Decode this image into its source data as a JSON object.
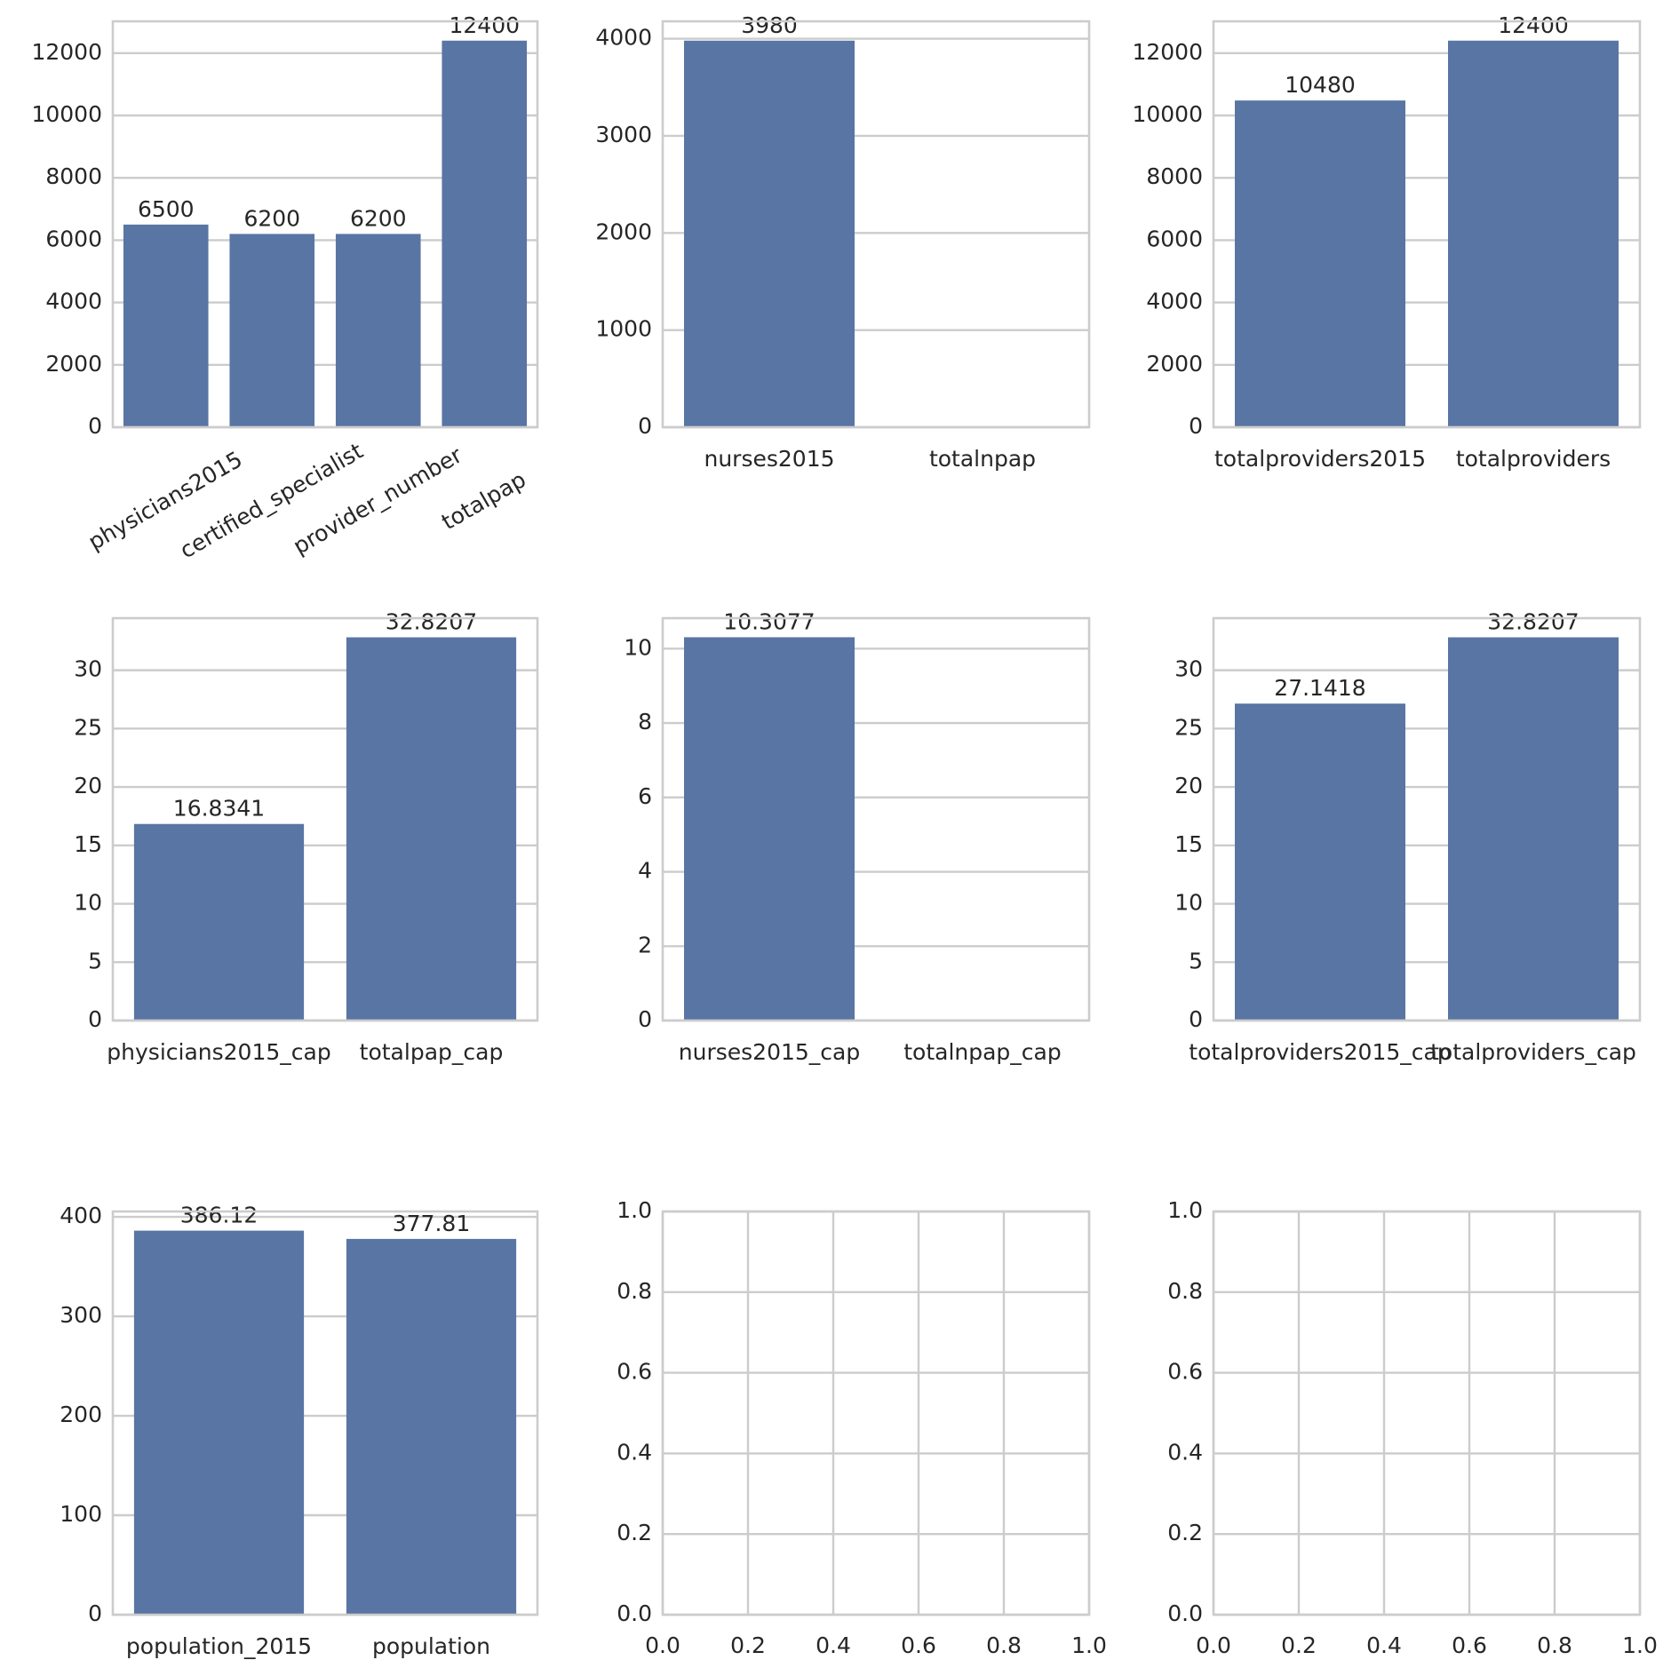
{
  "chart_data": [
    {
      "type": "bar",
      "categories": [
        "physicians2015",
        "certified_specialist",
        "provider_number",
        "totalpap"
      ],
      "values": [
        6500,
        6200,
        6200,
        12400
      ],
      "color": "#5975a4",
      "ylim": [
        0,
        13020
      ],
      "yticks": [
        0,
        2000,
        4000,
        6000,
        8000,
        10000,
        12000
      ],
      "grid": [
        "y"
      ],
      "xtick_rotation": 30
    },
    {
      "type": "bar",
      "categories": [
        "nurses2015",
        "totalnpap"
      ],
      "values": [
        3980,
        null
      ],
      "color": "#5975a4",
      "ylim": [
        0,
        4179
      ],
      "yticks": [
        0,
        1000,
        2000,
        3000,
        4000
      ],
      "grid": [
        "y"
      ]
    },
    {
      "type": "bar",
      "categories": [
        "totalproviders2015",
        "totalproviders"
      ],
      "values": [
        10480,
        12400
      ],
      "color": "#5975a4",
      "ylim": [
        0,
        13020
      ],
      "yticks": [
        0,
        2000,
        4000,
        6000,
        8000,
        10000,
        12000
      ],
      "grid": [
        "y"
      ]
    },
    {
      "type": "bar",
      "categories": [
        "physicians2015_cap",
        "totalpap_cap"
      ],
      "values": [
        16.8341,
        32.8207
      ],
      "color": "#5975a4",
      "ylim": [
        0,
        34.46
      ],
      "yticks": [
        0,
        5,
        10,
        15,
        20,
        25,
        30
      ],
      "grid": [
        "y"
      ]
    },
    {
      "type": "bar",
      "categories": [
        "nurses2015_cap",
        "totalnpap_cap"
      ],
      "values": [
        10.3077,
        null
      ],
      "color": "#5975a4",
      "ylim": [
        0,
        10.82
      ],
      "yticks": [
        0,
        2,
        4,
        6,
        8,
        10
      ],
      "grid": [
        "y"
      ]
    },
    {
      "type": "bar",
      "categories": [
        "totalproviders2015_cap",
        "totalproviders_cap"
      ],
      "values": [
        27.1418,
        32.8207
      ],
      "color": "#5975a4",
      "ylim": [
        0,
        34.46
      ],
      "yticks": [
        0,
        5,
        10,
        15,
        20,
        25,
        30
      ],
      "grid": [
        "y"
      ]
    },
    {
      "type": "bar",
      "categories": [
        "population_2015",
        "population"
      ],
      "values": [
        386.12,
        377.81
      ],
      "color": "#5975a4",
      "ylim": [
        0,
        405.4
      ],
      "yticks": [
        0,
        100,
        200,
        300,
        400
      ],
      "grid": [
        "y"
      ]
    },
    {
      "type": "empty",
      "xlim": [
        0,
        1
      ],
      "ylim": [
        0,
        1
      ],
      "xticks": [
        {
          "value": 0,
          "label": "0.0"
        },
        {
          "value": 0.2,
          "label": "0.2"
        },
        {
          "value": 0.4,
          "label": "0.4"
        },
        {
          "value": 0.6,
          "label": "0.6"
        },
        {
          "value": 0.8,
          "label": "0.8"
        },
        {
          "value": 1,
          "label": "1.0"
        }
      ],
      "yticks": [
        {
          "value": 0,
          "label": "0.0"
        },
        {
          "value": 0.2,
          "label": "0.2"
        },
        {
          "value": 0.4,
          "label": "0.4"
        },
        {
          "value": 0.6,
          "label": "0.6"
        },
        {
          "value": 0.8,
          "label": "0.8"
        },
        {
          "value": 1,
          "label": "1.0"
        }
      ],
      "grid": [
        "x",
        "y"
      ]
    },
    {
      "type": "empty",
      "xlim": [
        0,
        1
      ],
      "ylim": [
        0,
        1
      ],
      "xticks": [
        {
          "value": 0,
          "label": "0.0"
        },
        {
          "value": 0.2,
          "label": "0.2"
        },
        {
          "value": 0.4,
          "label": "0.4"
        },
        {
          "value": 0.6,
          "label": "0.6"
        },
        {
          "value": 0.8,
          "label": "0.8"
        },
        {
          "value": 1,
          "label": "1.0"
        }
      ],
      "yticks": [
        {
          "value": 0,
          "label": "0.0"
        },
        {
          "value": 0.2,
          "label": "0.2"
        },
        {
          "value": 0.4,
          "label": "0.4"
        },
        {
          "value": 0.6,
          "label": "0.6"
        },
        {
          "value": 0.8,
          "label": "0.8"
        },
        {
          "value": 1,
          "label": "1.0"
        }
      ],
      "grid": [
        "x",
        "y"
      ]
    }
  ]
}
